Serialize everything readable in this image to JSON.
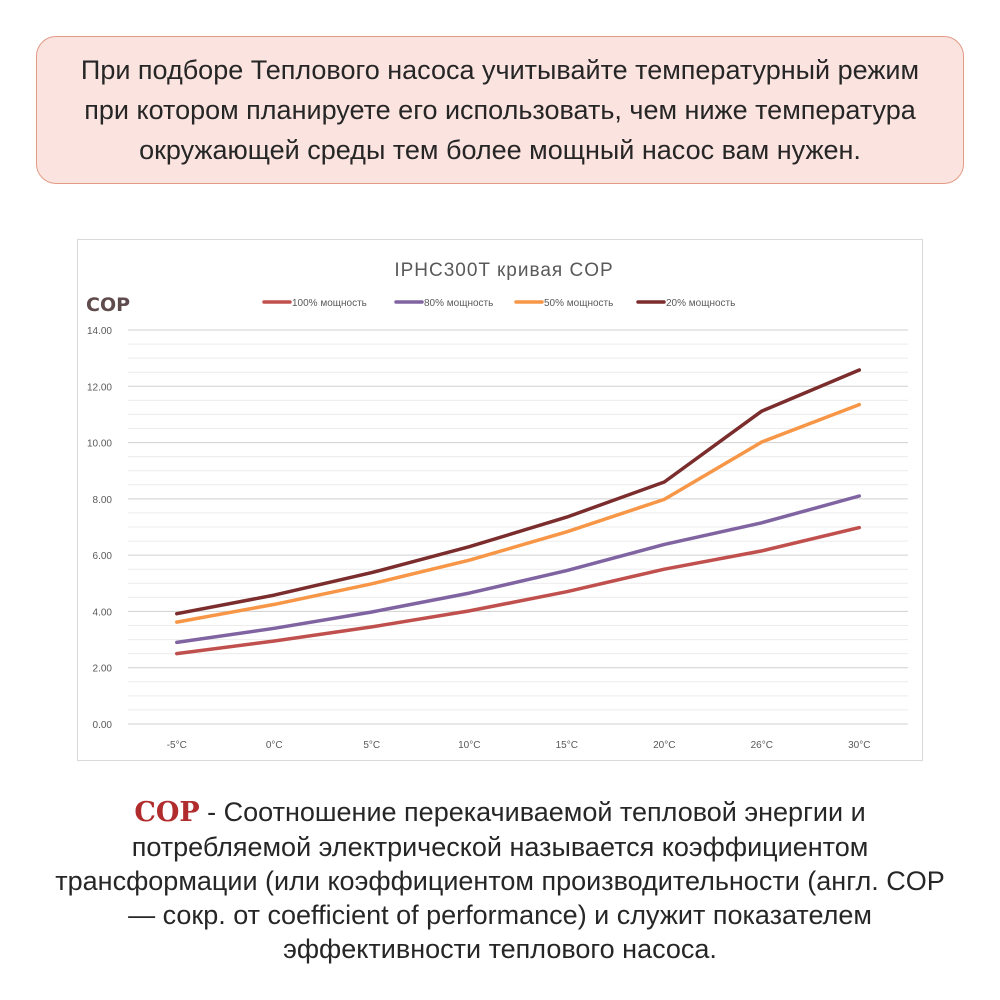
{
  "notice": {
    "line1": "При подборе  Теплового насоса учитывайте температурный режим",
    "line2": "при котором планируете его использовать,  чем ниже температура",
    "line3": "окружающей среды тем более мощный насос вам нужен."
  },
  "chart_data": {
    "type": "line",
    "title": "IPHC300T    кривая  COP",
    "ylabel": "COP",
    "xlabel": "",
    "ylim": [
      0,
      14
    ],
    "yticks": [
      "0.00",
      "2.00",
      "4.00",
      "6.00",
      "8.00",
      "10.00",
      "12.00",
      "14.00"
    ],
    "grid": true,
    "legend_position": "top",
    "categories": [
      "-5°C",
      "0°C",
      "5°C",
      "10°C",
      "15°C",
      "20°C",
      "26°C",
      "30°C"
    ],
    "series": [
      {
        "name": "100% мощность",
        "color": "#c0504d",
        "values": [
          2.5,
          2.95,
          3.45,
          4.02,
          4.7,
          5.5,
          6.15,
          6.98
        ]
      },
      {
        "name": "80% мощность",
        "color": "#8064a2",
        "values": [
          2.9,
          3.4,
          3.98,
          4.65,
          5.45,
          6.38,
          7.15,
          8.1
        ]
      },
      {
        "name": "50% мощность",
        "color": "#f79646",
        "values": [
          3.62,
          4.25,
          4.98,
          5.82,
          6.83,
          7.98,
          10.02,
          11.35
        ]
      },
      {
        "name": "20% мощность",
        "color": "#7b2c2c",
        "values": [
          3.92,
          4.58,
          5.38,
          6.3,
          7.35,
          8.6,
          11.12,
          12.58
        ]
      }
    ]
  },
  "footer": {
    "term": "COP",
    "line1_rest": "  - Соотношение перекачиваемой тепловой энергии и",
    "line2": "потребляемой электрической называется коэффициентом",
    "line3": "трансформации (или коэффициентом производительности (англ. COP",
    "line4": "— сокр. от coefficient of performance) и служит показателем",
    "line5": "эффективности теплового насоса."
  },
  "colors": {
    "notice_bg": "#fbe3df",
    "notice_border": "#e39a86",
    "term": "#b12d2d",
    "ylabel": "#5f4b4b"
  }
}
